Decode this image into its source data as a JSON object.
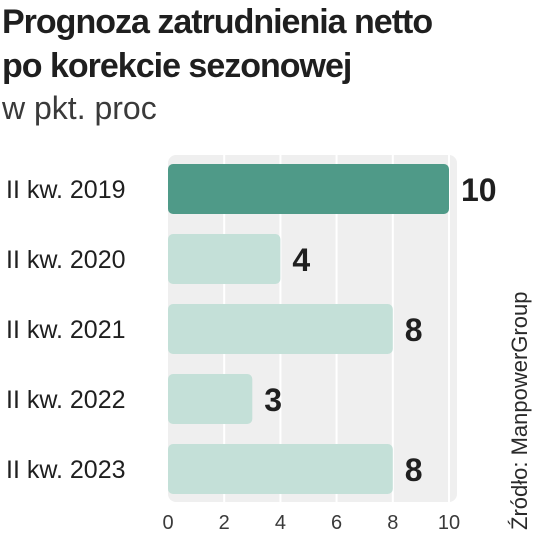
{
  "chart_data": {
    "type": "bar",
    "orientation": "horizontal",
    "title_line1": "Prognoza zatrudnienia netto",
    "title_line2": "po korekcie sezonowej",
    "subtitle": "w pkt. proc",
    "categories": [
      "II kw. 2019",
      "II kw. 2020",
      "II kw. 2021",
      "II kw. 2022",
      "II kw. 2023"
    ],
    "values": [
      10,
      4,
      8,
      3,
      8
    ],
    "xlim": [
      0,
      10
    ],
    "xticks": [
      0,
      2,
      4,
      6,
      8,
      10
    ],
    "grid": true,
    "source": "Źródło: ManpowerGroup",
    "colors": {
      "highlight": "#4f9a88",
      "bar": "#c4e0d8",
      "plot_bg": "#efefef",
      "grid": "#ffffff"
    }
  }
}
